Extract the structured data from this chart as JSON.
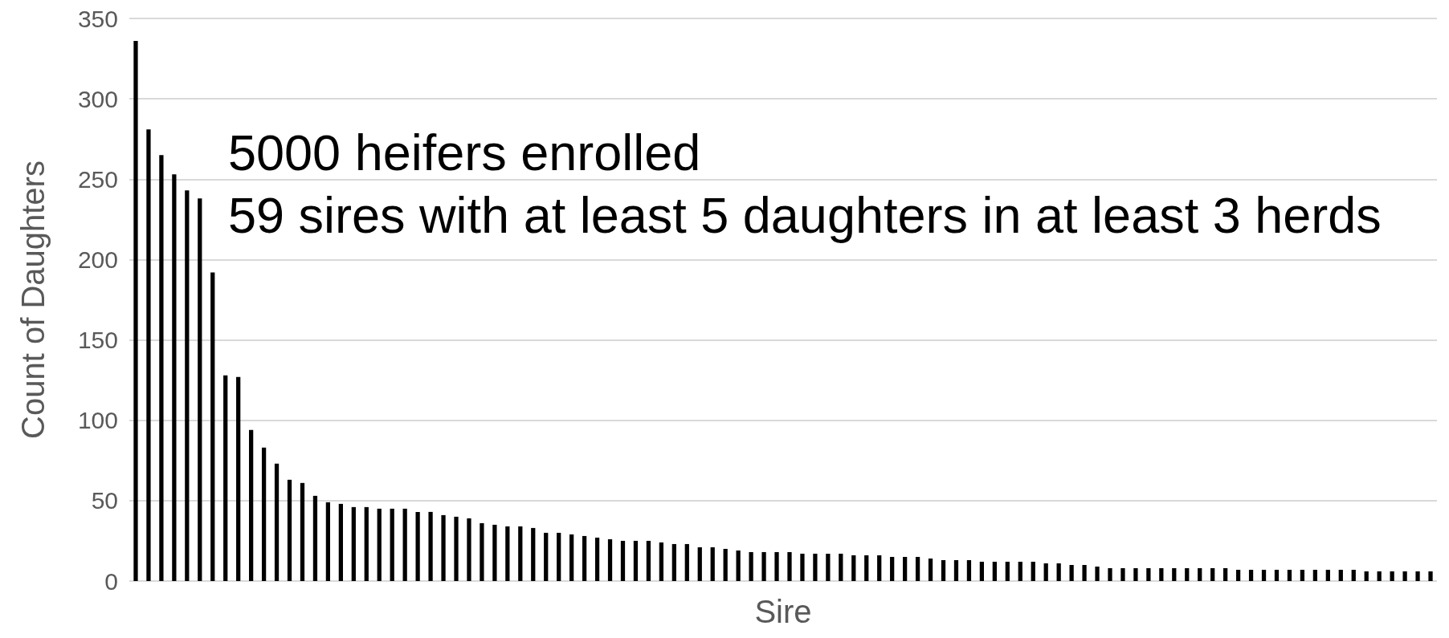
{
  "chart_data": {
    "type": "bar",
    "xlabel": "Sire",
    "ylabel": "Count of Daughters",
    "annotations": [
      "5000 heifers enrolled",
      "59 sires with at least 5 daughters in at least 3 herds"
    ],
    "categories": [
      null,
      null,
      null,
      null,
      null,
      null,
      null,
      null,
      null,
      null,
      null,
      null,
      null,
      null,
      null,
      null,
      null,
      null,
      null,
      null,
      null,
      null,
      null,
      null,
      null,
      null,
      null,
      null,
      null,
      null,
      null,
      null,
      null,
      null,
      null,
      null,
      null,
      null,
      null,
      null,
      null,
      null,
      null,
      null,
      null,
      null,
      null,
      null,
      null,
      null,
      null,
      null,
      null,
      null,
      null,
      null,
      null,
      null,
      null,
      null,
      null,
      null,
      null,
      null,
      null,
      null,
      null,
      null,
      null,
      null,
      null,
      null,
      null,
      null,
      null,
      null,
      null,
      null,
      null,
      null,
      null,
      null,
      null,
      null,
      null,
      null,
      null,
      null,
      null,
      null,
      null,
      null,
      null,
      null,
      null,
      null,
      null,
      null,
      null,
      null,
      null,
      null
    ],
    "values": [
      336,
      281,
      265,
      253,
      243,
      238,
      192,
      128,
      127,
      94,
      83,
      73,
      63,
      61,
      53,
      49,
      48,
      46,
      46,
      45,
      45,
      45,
      43,
      43,
      41,
      40,
      39,
      36,
      35,
      34,
      34,
      33,
      30,
      30,
      29,
      28,
      27,
      26,
      25,
      25,
      25,
      24,
      23,
      23,
      21,
      21,
      20,
      19,
      18,
      18,
      18,
      18,
      17,
      17,
      17,
      17,
      16,
      16,
      16,
      15,
      15,
      15,
      14,
      13,
      13,
      13,
      12,
      12,
      12,
      12,
      12,
      11,
      11,
      10,
      10,
      9,
      8,
      8,
      8,
      8,
      8,
      8,
      8,
      8,
      8,
      8,
      7,
      7,
      7,
      7,
      7,
      7,
      7,
      7,
      7,
      7,
      6,
      6,
      6,
      6,
      6,
      6
    ],
    "color": "#000000",
    "ylim": [
      0,
      350
    ],
    "yticks": [
      0,
      50,
      100,
      150,
      200,
      250,
      300,
      350
    ],
    "grid": "y"
  }
}
